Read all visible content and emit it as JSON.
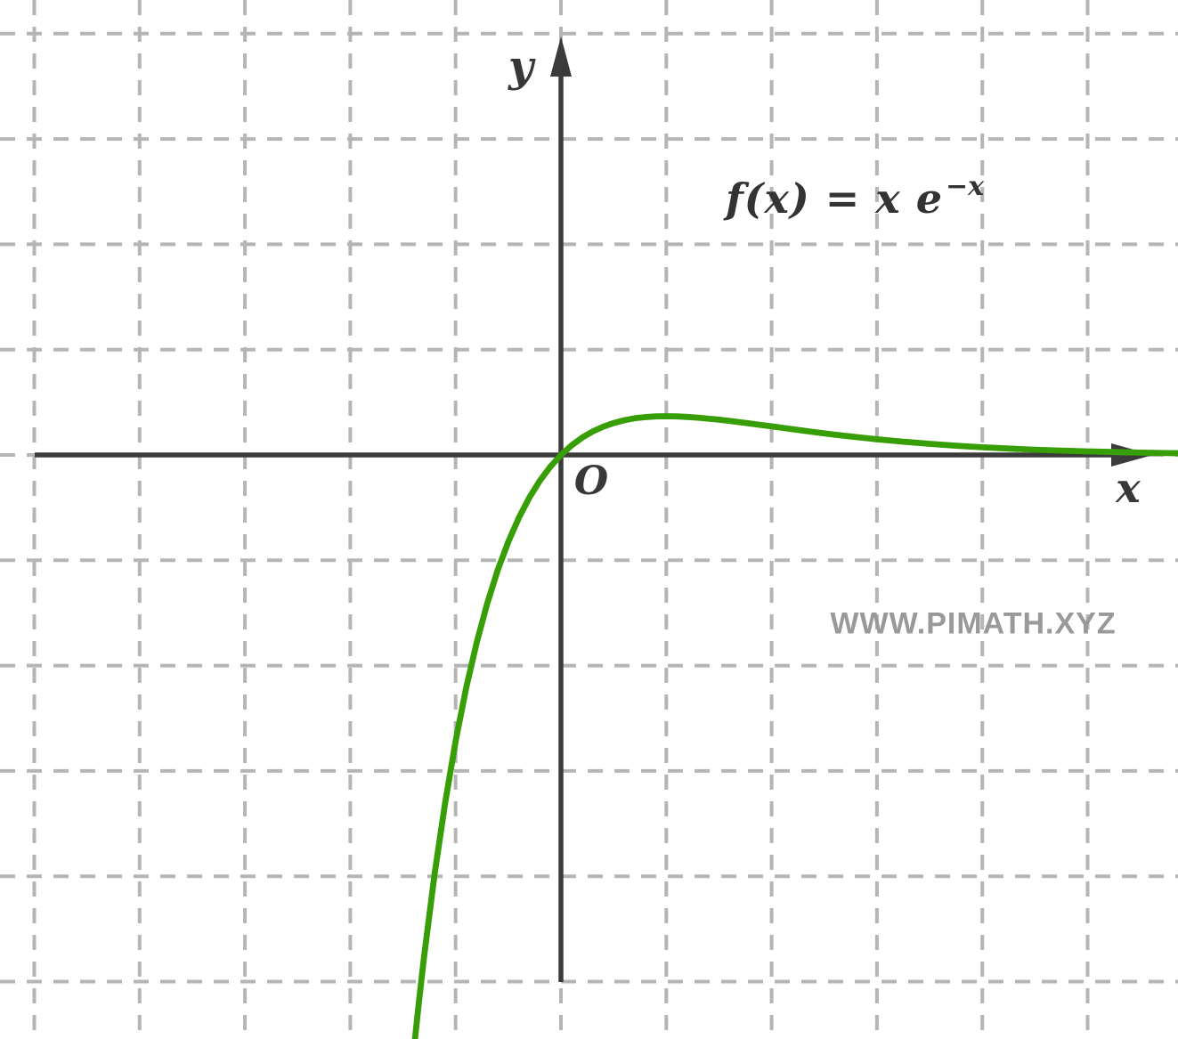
{
  "page": {
    "background": "#ffffff",
    "watermark": "WWW.PIMATH.XYZ"
  },
  "labels": {
    "y_axis": "y",
    "x_axis": "x",
    "origin": "O"
  },
  "formula": {
    "base": "f(x) = x e",
    "exponent": "−x",
    "plain_text": "f(x) = x e^(−x)"
  },
  "colors": {
    "curve": "#389e06",
    "axis": "#3b3b3b",
    "grid": "#b5b5b5",
    "watermark": "#999999",
    "text": "#333333"
  },
  "chart_data": {
    "type": "line",
    "title": "",
    "xlabel": "x",
    "ylabel": "y",
    "origin_label": "O",
    "annotation": "f(x) = x e^(−x)",
    "xlim": [
      -5.33,
      5.86
    ],
    "ylim": [
      -5.55,
      4.32
    ],
    "grid": {
      "style": "dashed",
      "spacing": 1,
      "color": "#b5b5b5"
    },
    "axes": {
      "numbered_ticks": false,
      "arrows": true
    },
    "legend": null,
    "series": [
      {
        "name": "f(x) = x e^(−x)",
        "color": "#389e06",
        "points": [
          [
            -1.4,
            -5.677
          ],
          [
            -1.35,
            -5.207
          ],
          [
            -1.3,
            -4.77
          ],
          [
            -1.2,
            -3.984
          ],
          [
            -1.1,
            -3.305
          ],
          [
            -1.0,
            -2.718
          ],
          [
            -0.9,
            -2.214
          ],
          [
            -0.8,
            -1.78
          ],
          [
            -0.7,
            -1.41
          ],
          [
            -0.6,
            -1.093
          ],
          [
            -0.5,
            -0.824
          ],
          [
            -0.4,
            -0.597
          ],
          [
            -0.3,
            -0.405
          ],
          [
            -0.2,
            -0.244
          ],
          [
            -0.1,
            -0.111
          ],
          [
            0.0,
            0.0
          ],
          [
            0.1,
            0.09
          ],
          [
            0.2,
            0.164
          ],
          [
            0.3,
            0.222
          ],
          [
            0.4,
            0.268
          ],
          [
            0.5,
            0.303
          ],
          [
            0.6,
            0.329
          ],
          [
            0.7,
            0.348
          ],
          [
            0.8,
            0.359
          ],
          [
            0.9,
            0.366
          ],
          [
            1.0,
            0.368
          ],
          [
            1.1,
            0.366
          ],
          [
            1.2,
            0.361
          ],
          [
            1.3,
            0.354
          ],
          [
            1.4,
            0.345
          ],
          [
            1.5,
            0.335
          ],
          [
            1.6,
            0.323
          ],
          [
            1.7,
            0.311
          ],
          [
            1.8,
            0.298
          ],
          [
            1.9,
            0.284
          ],
          [
            2.0,
            0.271
          ],
          [
            2.2,
            0.244
          ],
          [
            2.4,
            0.218
          ],
          [
            2.6,
            0.193
          ],
          [
            2.8,
            0.17
          ],
          [
            3.0,
            0.149
          ],
          [
            3.25,
            0.126
          ],
          [
            3.5,
            0.106
          ],
          [
            3.75,
            0.088
          ],
          [
            4.0,
            0.073
          ],
          [
            4.25,
            0.061
          ],
          [
            4.5,
            0.05
          ],
          [
            4.75,
            0.041
          ],
          [
            5.0,
            0.034
          ],
          [
            5.25,
            0.028
          ],
          [
            5.5,
            0.022
          ],
          [
            5.75,
            0.018
          ],
          [
            5.9,
            0.016
          ]
        ]
      }
    ]
  }
}
